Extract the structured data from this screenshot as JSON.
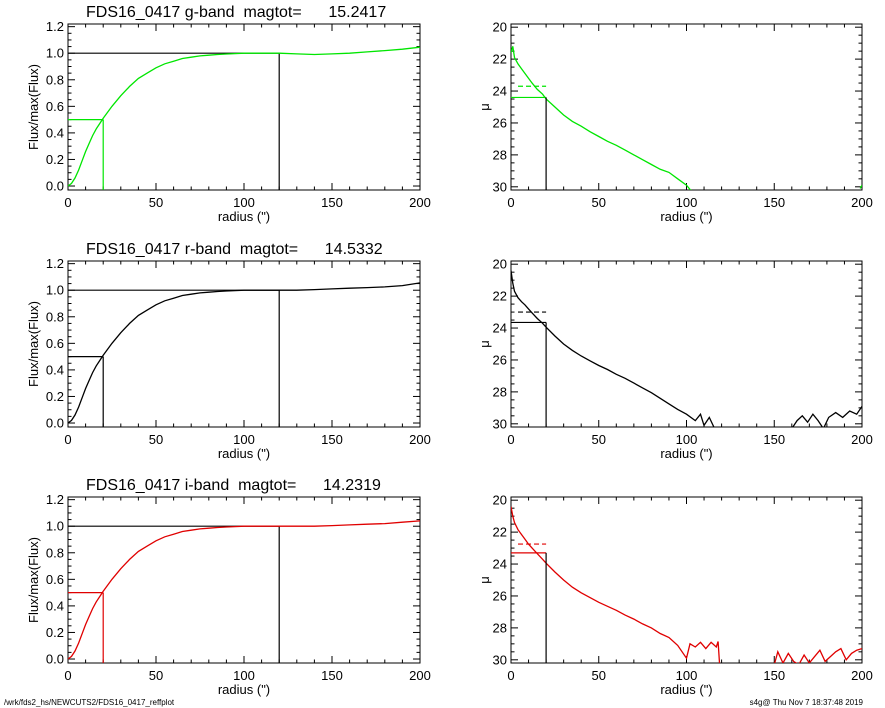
{
  "colors": {
    "g": "#00e600",
    "r": "#000000",
    "i": "#e00000",
    "frame": "#000000"
  },
  "footer": {
    "left": "/wrk/fds2_hs/NEWCUTS2/FDS16_0417_reffplot",
    "right": "s4g@  Thu Nov  7 18:37:48 2019"
  },
  "chart_data": [
    {
      "type": "line",
      "band": "g",
      "color_key": "g",
      "title": "FDS16_0417 g-band  magtot=      15.2417",
      "xlabel": "radius (\")",
      "ylabel": "Flux/max(Flux)",
      "xlim": [
        0,
        200
      ],
      "ylim": [
        -0.03,
        1.22
      ],
      "xticks": [
        0,
        50,
        100,
        150,
        200
      ],
      "yticks": [
        0.0,
        0.2,
        0.4,
        0.6,
        0.8,
        1.0,
        1.2
      ],
      "x": [
        0,
        2,
        4,
        6,
        8,
        10,
        12,
        14,
        16,
        18,
        20,
        25,
        30,
        35,
        40,
        45,
        50,
        55,
        60,
        65,
        70,
        75,
        80,
        85,
        90,
        95,
        100,
        105,
        110,
        115,
        120,
        130,
        140,
        150,
        160,
        170,
        180,
        190,
        200
      ],
      "y": [
        0,
        0.02,
        0.06,
        0.12,
        0.19,
        0.26,
        0.32,
        0.38,
        0.43,
        0.47,
        0.51,
        0.6,
        0.68,
        0.75,
        0.81,
        0.85,
        0.89,
        0.92,
        0.94,
        0.96,
        0.97,
        0.98,
        0.985,
        0.99,
        0.994,
        0.997,
        1.0,
        1.0,
        1.0,
        1.0,
        1.0,
        0.995,
        0.99,
        0.995,
        1.0,
        1.01,
        1.02,
        1.03,
        1.045
      ],
      "half_light_radius": 20,
      "half_light_level": 0.5,
      "total_radius": 120,
      "total_level": 1.0
    },
    {
      "type": "line",
      "band": "g",
      "color_key": "g",
      "xlabel": "radius (\")",
      "ylabel": "μ",
      "xlim": [
        0,
        200
      ],
      "ylim": [
        30.2,
        19.8
      ],
      "y_inverted": true,
      "xticks": [
        0,
        50,
        100,
        150,
        200
      ],
      "yticks": [
        20,
        22,
        24,
        26,
        28,
        30
      ],
      "x": [
        0,
        1,
        2,
        4,
        6,
        8,
        10,
        12,
        15,
        18,
        20,
        25,
        30,
        35,
        40,
        45,
        50,
        55,
        60,
        65,
        70,
        75,
        80,
        85,
        90,
        95,
        100,
        103,
        105
      ],
      "y": [
        21.6,
        21.2,
        21.9,
        22.3,
        22.6,
        22.9,
        23.2,
        23.5,
        23.9,
        24.2,
        24.5,
        25.0,
        25.5,
        25.9,
        26.2,
        26.55,
        26.85,
        27.15,
        27.4,
        27.7,
        28.0,
        28.3,
        28.6,
        28.9,
        29.1,
        29.5,
        29.9,
        30.3,
        30.5
      ],
      "tail_x": [
        199,
        200
      ],
      "tail_y": [
        30.1,
        29.9
      ],
      "r_eff": 20,
      "mu_eff": 24.4,
      "mu_mean_eff": 23.7
    },
    {
      "type": "line",
      "band": "r",
      "color_key": "r",
      "title": "FDS16_0417 r-band  magtot=      14.5332",
      "xlabel": "radius (\")",
      "ylabel": "Flux/max(Flux)",
      "xlim": [
        0,
        200
      ],
      "ylim": [
        -0.03,
        1.22
      ],
      "xticks": [
        0,
        50,
        100,
        150,
        200
      ],
      "yticks": [
        0.0,
        0.2,
        0.4,
        0.6,
        0.8,
        1.0,
        1.2
      ],
      "x": [
        0,
        2,
        4,
        6,
        8,
        10,
        12,
        14,
        16,
        18,
        20,
        25,
        30,
        35,
        40,
        45,
        50,
        55,
        60,
        65,
        70,
        75,
        80,
        85,
        90,
        95,
        100,
        105,
        110,
        115,
        120,
        130,
        140,
        150,
        160,
        170,
        180,
        190,
        200
      ],
      "y": [
        0,
        0.02,
        0.06,
        0.12,
        0.19,
        0.26,
        0.32,
        0.38,
        0.43,
        0.47,
        0.51,
        0.6,
        0.68,
        0.75,
        0.81,
        0.85,
        0.89,
        0.92,
        0.94,
        0.96,
        0.97,
        0.98,
        0.985,
        0.99,
        0.994,
        0.997,
        1.0,
        1.0,
        1.0,
        1.0,
        1.0,
        1.0,
        1.005,
        1.01,
        1.015,
        1.02,
        1.025,
        1.035,
        1.055
      ],
      "half_light_radius": 20,
      "half_light_level": 0.5,
      "total_radius": 120,
      "total_level": 1.0
    },
    {
      "type": "line",
      "band": "r",
      "color_key": "r",
      "xlabel": "radius (\")",
      "ylabel": "μ",
      "xlim": [
        0,
        200
      ],
      "ylim": [
        30.2,
        19.8
      ],
      "y_inverted": true,
      "xticks": [
        0,
        50,
        100,
        150,
        200
      ],
      "yticks": [
        20,
        22,
        24,
        26,
        28,
        30
      ],
      "x": [
        0,
        1,
        2,
        4,
        6,
        8,
        10,
        12,
        15,
        18,
        20,
        25,
        30,
        35,
        40,
        45,
        50,
        55,
        60,
        65,
        70,
        75,
        80,
        85,
        90,
        95,
        100,
        105,
        108,
        110,
        113,
        116,
        120
      ],
      "y": [
        20.4,
        21.2,
        21.7,
        22.1,
        22.35,
        22.55,
        22.8,
        23.05,
        23.4,
        23.7,
        23.95,
        24.5,
        25.0,
        25.4,
        25.75,
        26.05,
        26.35,
        26.6,
        26.9,
        27.15,
        27.45,
        27.75,
        28.05,
        28.4,
        28.75,
        29.1,
        29.4,
        29.8,
        29.4,
        30.1,
        29.6,
        30.3,
        30.6
      ],
      "tail_x": [
        160,
        163,
        166,
        169,
        172,
        175,
        178,
        181,
        185,
        189,
        193,
        197,
        200
      ],
      "tail_y": [
        30.3,
        29.8,
        29.5,
        29.9,
        29.4,
        29.8,
        30.3,
        29.6,
        29.3,
        29.6,
        29.2,
        29.4,
        28.9
      ],
      "r_eff": 20,
      "mu_eff": 23.65,
      "mu_mean_eff": 23.0
    },
    {
      "type": "line",
      "band": "i",
      "color_key": "i",
      "title": "FDS16_0417 i-band  magtot=      14.2319",
      "xlabel": "radius (\")",
      "ylabel": "Flux/max(Flux)",
      "xlim": [
        0,
        200
      ],
      "ylim": [
        -0.03,
        1.22
      ],
      "xticks": [
        0,
        50,
        100,
        150,
        200
      ],
      "yticks": [
        0.0,
        0.2,
        0.4,
        0.6,
        0.8,
        1.0,
        1.2
      ],
      "x": [
        0,
        2,
        4,
        6,
        8,
        10,
        12,
        14,
        16,
        18,
        20,
        25,
        30,
        35,
        40,
        45,
        50,
        55,
        60,
        65,
        70,
        75,
        80,
        85,
        90,
        95,
        100,
        105,
        110,
        115,
        120,
        130,
        140,
        150,
        160,
        170,
        180,
        190,
        200
      ],
      "y": [
        0,
        0.02,
        0.06,
        0.12,
        0.19,
        0.26,
        0.32,
        0.38,
        0.43,
        0.47,
        0.51,
        0.6,
        0.68,
        0.75,
        0.81,
        0.85,
        0.89,
        0.92,
        0.94,
        0.96,
        0.97,
        0.98,
        0.985,
        0.99,
        0.994,
        0.997,
        1.0,
        1.0,
        1.0,
        1.0,
        1.0,
        1.0,
        1.0,
        1.005,
        1.01,
        1.015,
        1.02,
        1.03,
        1.04
      ],
      "half_light_radius": 20,
      "half_light_level": 0.5,
      "total_radius": 120,
      "total_level": 1.0
    },
    {
      "type": "line",
      "band": "i",
      "color_key": "i",
      "xlabel": "radius (\")",
      "ylabel": "μ",
      "xlim": [
        0,
        200
      ],
      "ylim": [
        30.2,
        19.8
      ],
      "y_inverted": true,
      "xticks": [
        0,
        50,
        100,
        150,
        200
      ],
      "yticks": [
        20,
        22,
        24,
        26,
        28,
        30
      ],
      "x": [
        0,
        1,
        2,
        4,
        6,
        8,
        10,
        12,
        15,
        18,
        20,
        25,
        30,
        35,
        40,
        45,
        50,
        55,
        60,
        65,
        70,
        75,
        80,
        85,
        90,
        95,
        100,
        102,
        105,
        108,
        111,
        114,
        117,
        118,
        119
      ],
      "y": [
        20.4,
        21.0,
        21.4,
        21.85,
        22.15,
        22.45,
        22.75,
        23.0,
        23.35,
        23.7,
        23.95,
        24.5,
        25.0,
        25.45,
        25.8,
        26.1,
        26.4,
        26.65,
        26.9,
        27.2,
        27.45,
        27.75,
        28.0,
        28.35,
        28.6,
        29.1,
        29.9,
        29.0,
        29.2,
        28.9,
        29.3,
        28.9,
        29.2,
        28.85,
        30.5
      ],
      "tail_x": [
        150,
        152,
        155,
        158,
        161,
        164,
        167,
        170,
        173,
        176,
        179,
        182,
        185,
        188,
        191,
        194,
        197,
        200
      ],
      "tail_y": [
        30.3,
        29.5,
        30.2,
        29.6,
        30.1,
        30.3,
        29.7,
        30.2,
        29.8,
        29.4,
        30.1,
        29.8,
        29.5,
        29.3,
        30.0,
        29.6,
        29.4,
        29.3
      ],
      "r_eff": 20,
      "mu_eff": 23.3,
      "mu_mean_eff": 22.75
    }
  ]
}
